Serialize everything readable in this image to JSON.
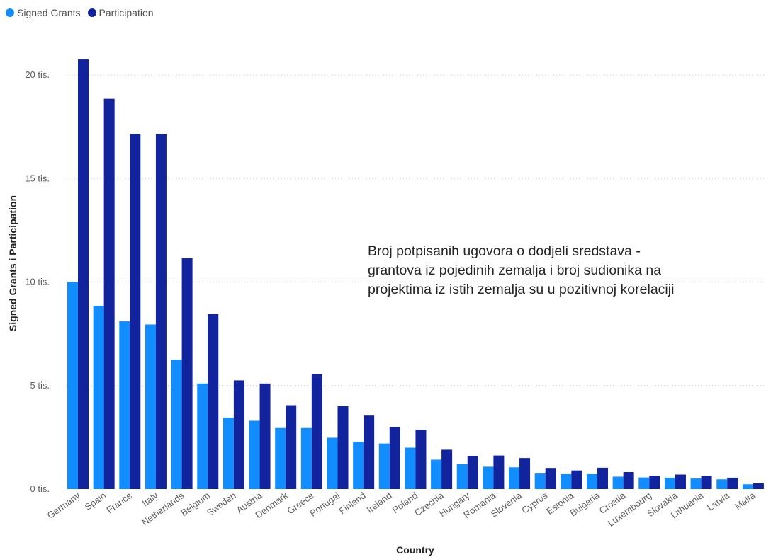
{
  "legend": {
    "items": [
      {
        "label": "Signed Grants",
        "color": "#118dff"
      },
      {
        "label": "Participation",
        "color": "#12239e"
      }
    ]
  },
  "annotation": {
    "text": "Broj potpisanih ugovora o dodjeli sredstava - grantova iz pojedinih zemalja i broj sudionika na projektima iz istih zemalja su u pozitivnoj korelaciji"
  },
  "chart_data": {
    "type": "bar",
    "xlabel": "Country",
    "ylabel": "Signed Grants i Participation",
    "ylim": [
      0,
      21000
    ],
    "yticks": [
      {
        "value": 0,
        "label": "0 tis."
      },
      {
        "value": 5000,
        "label": "5 tis."
      },
      {
        "value": 10000,
        "label": "10 tis."
      },
      {
        "value": 15000,
        "label": "15 tis."
      },
      {
        "value": 20000,
        "label": "20 tis."
      }
    ],
    "grid": true,
    "legend_position": "top-left",
    "categories": [
      "Germany",
      "Spain",
      "France",
      "Italy",
      "Netherlands",
      "Belgium",
      "Sweden",
      "Austria",
      "Denmark",
      "Greece",
      "Portugal",
      "Finland",
      "Ireland",
      "Poland",
      "Czechia",
      "Hungary",
      "Romania",
      "Slovenia",
      "Cyprus",
      "Estonia",
      "Bulgaria",
      "Croatia",
      "Luxembourg",
      "Slovakia",
      "Lithuania",
      "Latvia",
      "Malta"
    ],
    "series": [
      {
        "name": "Signed Grants",
        "color": "#118dff",
        "values": [
          10000,
          8850,
          8100,
          7950,
          6250,
          5100,
          3450,
          3300,
          2950,
          2950,
          2480,
          2280,
          2200,
          2000,
          1420,
          1200,
          1080,
          1050,
          750,
          720,
          720,
          600,
          560,
          550,
          510,
          470,
          230
        ]
      },
      {
        "name": "Participation",
        "color": "#12239e",
        "values": [
          20750,
          18850,
          17150,
          17150,
          11150,
          8450,
          5250,
          5100,
          4050,
          5550,
          4000,
          3550,
          3000,
          2870,
          1900,
          1600,
          1620,
          1500,
          1020,
          900,
          1030,
          820,
          650,
          700,
          640,
          550,
          280
        ]
      }
    ]
  }
}
